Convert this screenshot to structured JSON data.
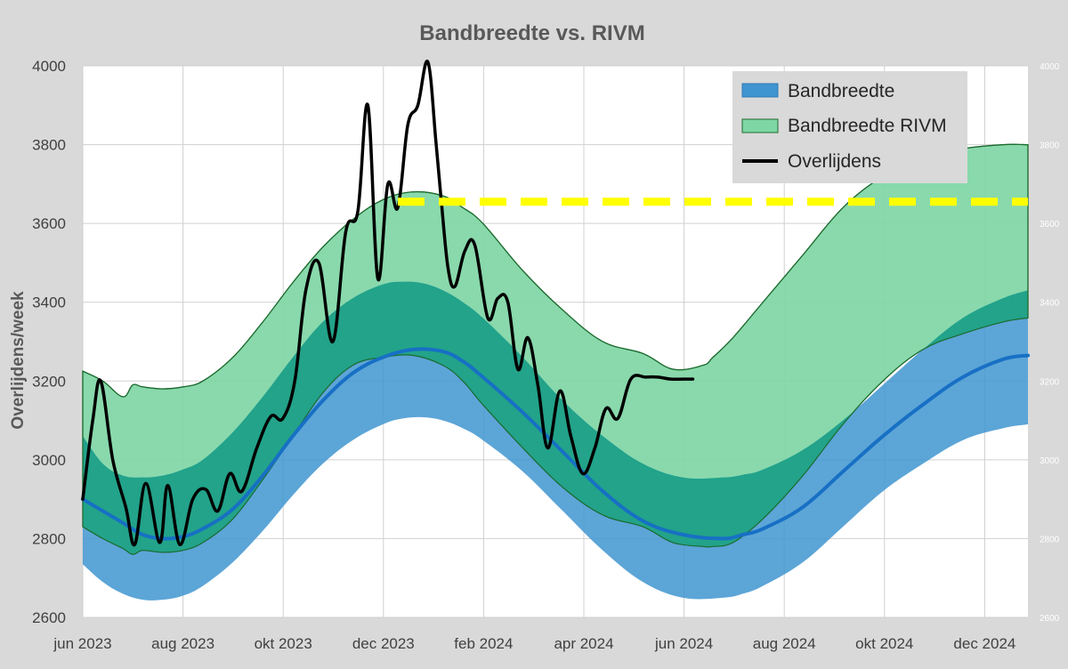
{
  "chart_data": {
    "type": "area",
    "title": "Bandbreedte vs. RIVM",
    "ylabel": "Overlijdens/week",
    "xlabel": "",
    "ylim": [
      2600,
      4000
    ],
    "yticks": [
      2600,
      2800,
      3000,
      3200,
      3400,
      3600,
      3800,
      4000
    ],
    "x_ticks": [
      "jun 2023",
      "aug 2023",
      "okt 2023",
      "dec 2023",
      "feb 2024",
      "apr 2024",
      "jun 2024",
      "aug 2024",
      "okt 2024",
      "dec 2024"
    ],
    "x_note": "x values are weeks since start of jun 2023; tick labels every 8.7 weeks",
    "legend": [
      {
        "label": "Bandbreedte",
        "color": "#3f95d0"
      },
      {
        "label": "Bandbreedte RIVM",
        "color": "#7fd6a5"
      },
      {
        "label": "Overlijdens",
        "color": "#000000"
      }
    ],
    "series": [
      {
        "name": "Bandbreedte RIVM",
        "kind": "band",
        "color": "#7fd6a5",
        "x": [
          0,
          2,
          4,
          5,
          6,
          8,
          10,
          12,
          15,
          18,
          21,
          24,
          27,
          30,
          33,
          36,
          38,
          40,
          44,
          48,
          52,
          56,
          59,
          62,
          63,
          65,
          68,
          72,
          76,
          80,
          84,
          88,
          92,
          94.5
        ],
        "upper": [
          3225,
          3200,
          3160,
          3190,
          3185,
          3180,
          3185,
          3200,
          3260,
          3350,
          3450,
          3540,
          3610,
          3660,
          3680,
          3670,
          3640,
          3600,
          3480,
          3380,
          3300,
          3270,
          3230,
          3240,
          3260,
          3310,
          3400,
          3520,
          3640,
          3720,
          3770,
          3790,
          3800,
          3800
        ],
        "lower": [
          2830,
          2800,
          2775,
          2760,
          2770,
          2765,
          2770,
          2790,
          2850,
          2950,
          3060,
          3170,
          3240,
          3260,
          3265,
          3240,
          3200,
          3140,
          3030,
          2930,
          2860,
          2830,
          2790,
          2780,
          2780,
          2790,
          2850,
          2960,
          3090,
          3200,
          3280,
          3320,
          3350,
          3360
        ]
      },
      {
        "name": "Bandbreedte",
        "kind": "band",
        "color": "#3f95d0",
        "x": [
          0,
          2,
          4,
          6,
          8,
          10,
          12,
          15,
          18,
          21,
          24,
          27,
          30,
          32,
          34,
          36,
          38,
          40,
          44,
          48,
          52,
          56,
          60,
          64,
          66,
          68,
          72,
          76,
          80,
          84,
          88,
          92,
          94.5
        ],
        "upper": [
          3060,
          2990,
          2960,
          2955,
          2960,
          2975,
          3000,
          3070,
          3160,
          3260,
          3350,
          3410,
          3445,
          3452,
          3448,
          3430,
          3400,
          3360,
          3260,
          3150,
          3060,
          2990,
          2955,
          2955,
          2962,
          2975,
          3025,
          3100,
          3190,
          3280,
          3360,
          3410,
          3430
        ],
        "lower": [
          2735,
          2690,
          2660,
          2645,
          2645,
          2655,
          2680,
          2740,
          2820,
          2910,
          2990,
          3050,
          3090,
          3105,
          3108,
          3100,
          3080,
          3050,
          2970,
          2870,
          2770,
          2690,
          2650,
          2650,
          2660,
          2680,
          2740,
          2830,
          2920,
          2990,
          3050,
          3080,
          3090
        ]
      },
      {
        "name": "Bandbreedte midden",
        "kind": "line",
        "color": "#1770c4",
        "x": [
          0,
          2,
          4,
          6,
          8,
          10,
          12,
          15,
          18,
          21,
          24,
          27,
          30,
          33,
          36,
          38,
          40,
          44,
          48,
          52,
          56,
          60,
          64,
          66,
          68,
          72,
          76,
          80,
          84,
          88,
          92,
          94.5
        ],
        "y": [
          2900,
          2870,
          2840,
          2810,
          2800,
          2805,
          2825,
          2875,
          2960,
          3060,
          3150,
          3220,
          3260,
          3280,
          3275,
          3250,
          3210,
          3120,
          3020,
          2920,
          2845,
          2810,
          2800,
          2810,
          2825,
          2880,
          2970,
          3060,
          3140,
          3210,
          3255,
          3265
        ]
      },
      {
        "name": "Overlijdens",
        "kind": "line",
        "color": "#000000",
        "x": [
          0,
          1,
          1.8,
          3,
          4.3,
          5.2,
          6.3,
          7.7,
          8.5,
          9.7,
          11,
          12.3,
          13.5,
          14.7,
          15.9,
          17.4,
          18.8,
          20,
          21.2,
          22.3,
          23.6,
          25,
          26.3,
          27.5,
          28.5,
          29.5,
          30.5,
          31.5,
          32.5,
          33.5,
          34.5,
          35.3,
          35.8,
          36.5,
          37.2,
          38.2,
          39.2,
          40.5,
          41.5,
          42.5,
          43.5,
          44.5,
          45.5,
          46.5,
          47.7,
          48.8,
          50,
          51.2,
          52.3,
          53.5,
          54.8,
          56.3,
          57.5,
          58.8,
          60.5,
          61
        ],
        "y": [
          2900,
          3100,
          3200,
          3000,
          2880,
          2785,
          2940,
          2790,
          2935,
          2785,
          2900,
          2925,
          2870,
          2965,
          2920,
          3030,
          3110,
          3105,
          3200,
          3430,
          3500,
          3300,
          3580,
          3630,
          3900,
          3460,
          3700,
          3640,
          3850,
          3900,
          4010,
          3810,
          3670,
          3490,
          3440,
          3530,
          3545,
          3360,
          3410,
          3400,
          3230,
          3310,
          3190,
          3030,
          3175,
          3060,
          2965,
          3030,
          3130,
          3105,
          3205,
          3210,
          3210,
          3205,
          3205,
          3205
        ]
      },
      {
        "name": "Drempel",
        "kind": "dashed-line",
        "color": "#ffff00",
        "x": [
          31.5,
          94.5
        ],
        "y": [
          3655,
          3655
        ]
      }
    ]
  }
}
